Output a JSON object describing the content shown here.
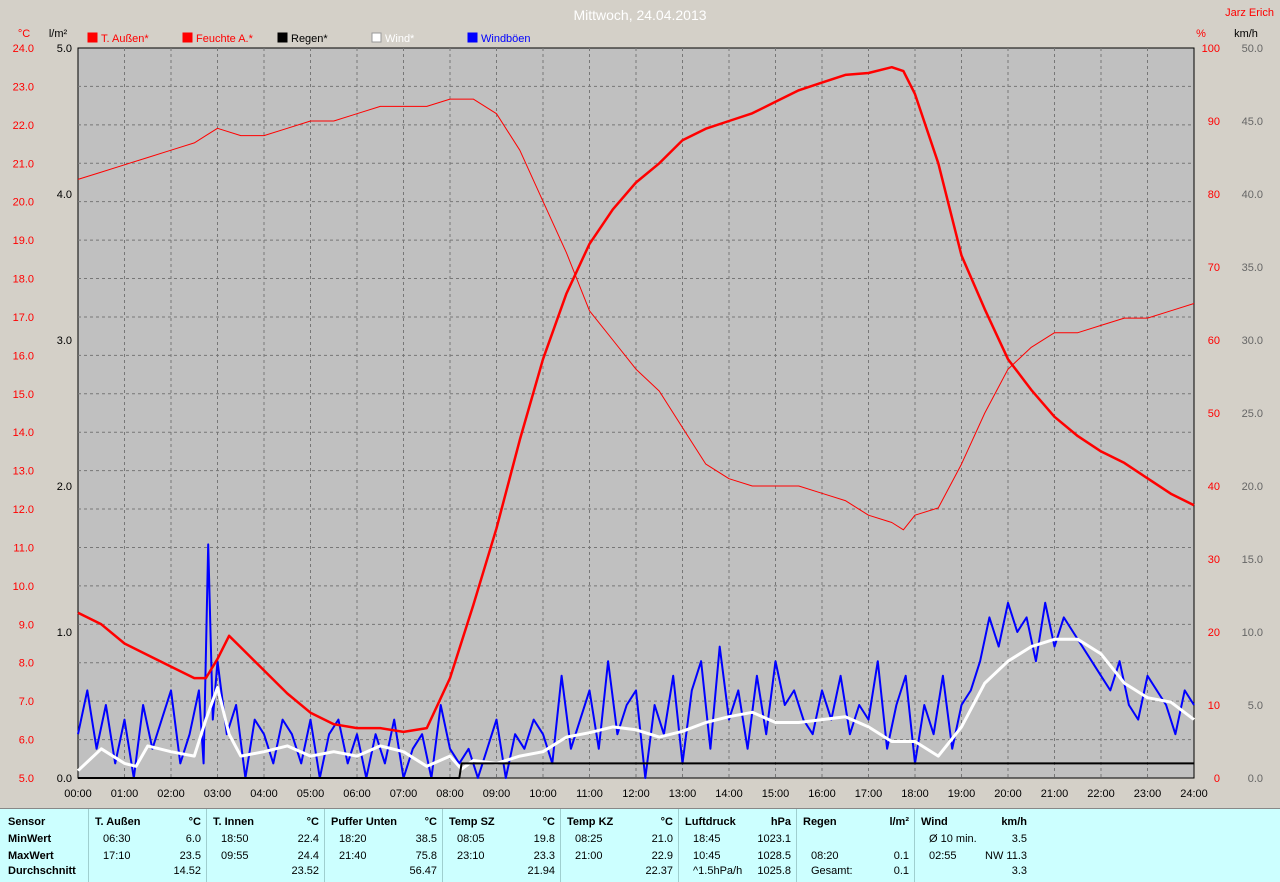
{
  "header": {
    "title": "Mittwoch, 24.04.2013",
    "author": "Jarz Erich",
    "unit_left_temp": "°C",
    "unit_left_rain": "l/m²",
    "unit_right_pct": "%",
    "unit_right_wind": "km/h"
  },
  "colors": {
    "background": "#d4d0c8",
    "plot_bg": "#c0c0c0",
    "red": "#ff0000",
    "blue": "#0000ff",
    "white": "#ffffff",
    "black": "#000000",
    "stats_bg": "#ccffff"
  },
  "chart_data": {
    "type": "line",
    "title": "Mittwoch, 24.04.2013",
    "legend": [
      {
        "name": "T. Außen*",
        "color": "#ff0000"
      },
      {
        "name": "Feuchte A.*",
        "color": "#ff0000"
      },
      {
        "name": "Regen*",
        "color": "#000000"
      },
      {
        "name": "Wind*",
        "color": "#ffffff"
      },
      {
        "name": "Windböen",
        "color": "#0000ff"
      }
    ],
    "x_ticks": [
      "00:00",
      "01:00",
      "02:00",
      "03:00",
      "04:00",
      "05:00",
      "06:00",
      "07:00",
      "08:00",
      "09:00",
      "10:00",
      "11:00",
      "12:00",
      "13:00",
      "14:00",
      "15:00",
      "16:00",
      "17:00",
      "18:00",
      "19:00",
      "20:00",
      "21:00",
      "22:00",
      "23:00",
      "24:00"
    ],
    "axes": {
      "temp": {
        "unit": "°C",
        "min": 5.0,
        "max": 24.0,
        "ticks": [
          "24.0",
          "23.0",
          "22.0",
          "21.0",
          "20.0",
          "19.0",
          "18.0",
          "17.0",
          "16.0",
          "15.0",
          "14.0",
          "13.0",
          "12.0",
          "11.0",
          "10.0",
          "9.0",
          "8.0",
          "7.0",
          "6.0",
          "5.0"
        ]
      },
      "rain": {
        "unit": "l/m²",
        "min": 0.0,
        "max": 5.0,
        "ticks": [
          "5.0",
          "4.0",
          "3.0",
          "2.0",
          "1.0",
          "0.0"
        ]
      },
      "humidity": {
        "unit": "%",
        "min": 0,
        "max": 100,
        "ticks": [
          "100",
          "90",
          "80",
          "70",
          "60",
          "50",
          "40",
          "30",
          "20",
          "10",
          "0"
        ]
      },
      "wind": {
        "unit": "km/h",
        "min": 0.0,
        "max": 50.0,
        "ticks": [
          "50.0",
          "45.0",
          "40.0",
          "35.0",
          "30.0",
          "25.0",
          "20.0",
          "15.0",
          "10.0",
          "5.0",
          "0.0"
        ]
      }
    },
    "series": [
      {
        "name": "T. Außen*",
        "axis": "temp",
        "x": [
          0,
          0.5,
          1,
          1.5,
          2,
          2.5,
          2.75,
          3,
          3.25,
          3.5,
          4,
          4.5,
          5,
          5.5,
          6,
          6.5,
          7,
          7.5,
          8,
          8.5,
          9,
          9.5,
          10,
          10.5,
          11,
          11.5,
          12,
          12.5,
          13,
          13.5,
          14,
          14.5,
          15,
          15.5,
          16,
          16.5,
          17,
          17.5,
          17.75,
          18,
          18.5,
          19,
          19.5,
          20,
          20.5,
          21,
          21.5,
          22,
          22.5,
          23,
          23.5,
          24
        ],
        "y": [
          9.3,
          9.0,
          8.5,
          8.2,
          7.9,
          7.6,
          7.6,
          8.1,
          8.7,
          8.4,
          7.8,
          7.2,
          6.7,
          6.4,
          6.3,
          6.3,
          6.2,
          6.3,
          7.6,
          9.5,
          11.5,
          13.8,
          15.9,
          17.6,
          18.9,
          19.8,
          20.5,
          21.0,
          21.6,
          21.9,
          22.1,
          22.3,
          22.6,
          22.9,
          23.1,
          23.3,
          23.35,
          23.5,
          23.4,
          22.8,
          21.0,
          18.6,
          17.2,
          15.9,
          15.1,
          14.4,
          13.9,
          13.5,
          13.2,
          12.8,
          12.4,
          12.1
        ]
      },
      {
        "name": "Feuchte A.*",
        "axis": "humidity",
        "x": [
          0,
          0.5,
          1,
          1.5,
          2,
          2.5,
          2.75,
          3,
          3.5,
          4,
          4.5,
          5,
          5.5,
          6,
          6.5,
          7,
          7.5,
          8,
          8.25,
          8.5,
          9,
          9.5,
          10,
          10.5,
          11,
          11.5,
          12,
          12.5,
          13,
          13.5,
          14,
          14.5,
          15,
          15.5,
          16,
          16.5,
          17,
          17.5,
          17.75,
          18,
          18.5,
          19,
          19.5,
          20,
          20.5,
          21,
          21.5,
          22,
          22.5,
          23,
          23.5,
          24
        ],
        "y": [
          82,
          83,
          84,
          85,
          86,
          87,
          88,
          89,
          88,
          88,
          89,
          90,
          90,
          91,
          92,
          92,
          92,
          93,
          93,
          93,
          91,
          86,
          79,
          72,
          64,
          60,
          56,
          53,
          48,
          43,
          41,
          40,
          40,
          40,
          39,
          38,
          36,
          35,
          34,
          36,
          37,
          43,
          50,
          56,
          59,
          61,
          61,
          62,
          63,
          63,
          64,
          65
        ]
      },
      {
        "name": "Regen*",
        "axis": "rain",
        "x": [
          0,
          8.2,
          8.25,
          8.5,
          9,
          10,
          24
        ],
        "y": [
          0,
          0,
          0.1,
          0.1,
          0.1,
          0.1,
          0.1
        ]
      },
      {
        "name": "Wind*",
        "axis": "wind",
        "x": [
          0,
          0.5,
          1,
          1.25,
          1.5,
          2,
          2.5,
          2.75,
          3,
          3.25,
          3.5,
          4,
          4.5,
          5,
          5.5,
          6,
          6.5,
          7,
          7.5,
          8,
          8.25,
          8.5,
          9,
          9.5,
          10,
          10.5,
          11,
          11.5,
          12,
          12.5,
          13,
          13.5,
          14,
          14.5,
          15,
          15.5,
          16,
          16.5,
          17,
          17.5,
          18,
          18.5,
          19,
          19.5,
          20,
          20.5,
          21,
          21.5,
          22,
          22.5,
          23,
          23.5,
          24
        ],
        "y": [
          0.5,
          2.0,
          1.0,
          0.8,
          2.2,
          1.8,
          1.5,
          4.0,
          6.2,
          3.0,
          1.5,
          1.8,
          2.2,
          1.5,
          1.8,
          1.5,
          2.2,
          1.8,
          0.8,
          1.5,
          0.6,
          1.2,
          1.0,
          1.5,
          1.8,
          2.8,
          3.1,
          3.5,
          3.3,
          2.8,
          3.2,
          3.8,
          4.2,
          4.5,
          3.8,
          3.8,
          4.0,
          4.2,
          3.5,
          2.5,
          2.5,
          1.5,
          3.5,
          6.5,
          8.0,
          9.0,
          9.5,
          9.5,
          8.5,
          6.5,
          5.5,
          5.2,
          4.0
        ]
      },
      {
        "name": "Windböen",
        "axis": "wind",
        "x": [
          0,
          0.2,
          0.4,
          0.6,
          0.8,
          1,
          1.2,
          1.4,
          1.6,
          1.8,
          2,
          2.2,
          2.4,
          2.6,
          2.7,
          2.8,
          2.9,
          3.0,
          3.2,
          3.4,
          3.6,
          3.8,
          4,
          4.2,
          4.4,
          4.6,
          4.8,
          5,
          5.2,
          5.4,
          5.6,
          5.8,
          6,
          6.2,
          6.4,
          6.6,
          6.8,
          7,
          7.2,
          7.4,
          7.6,
          7.8,
          8,
          8.2,
          8.4,
          8.6,
          8.8,
          9,
          9.2,
          9.4,
          9.6,
          9.8,
          10,
          10.2,
          10.4,
          10.6,
          10.8,
          11,
          11.2,
          11.4,
          11.6,
          11.8,
          12,
          12.2,
          12.4,
          12.6,
          12.8,
          13,
          13.2,
          13.4,
          13.6,
          13.8,
          14,
          14.2,
          14.4,
          14.6,
          14.8,
          15,
          15.2,
          15.4,
          15.6,
          15.8,
          16,
          16.2,
          16.4,
          16.6,
          16.8,
          17,
          17.2,
          17.4,
          17.6,
          17.8,
          18,
          18.2,
          18.4,
          18.6,
          18.8,
          19,
          19.2,
          19.4,
          19.6,
          19.8,
          20,
          20.2,
          20.4,
          20.6,
          20.8,
          21,
          21.2,
          21.4,
          21.6,
          21.8,
          22,
          22.2,
          22.4,
          22.6,
          22.8,
          23,
          23.2,
          23.4,
          23.6,
          23.8,
          24
        ],
        "y": [
          3,
          6,
          2,
          5,
          1,
          4,
          0,
          5,
          2,
          4,
          6,
          1,
          3,
          6,
          1,
          16,
          4,
          8,
          3,
          5,
          0,
          4,
          3,
          1,
          4,
          3,
          1,
          4,
          0,
          3,
          4,
          1,
          3,
          0,
          3,
          1,
          4,
          0,
          2,
          3,
          0,
          5,
          2,
          1,
          2,
          0,
          2,
          4,
          0,
          3,
          2,
          4,
          3,
          1,
          7,
          2,
          4,
          6,
          2,
          8,
          3,
          5,
          6,
          0,
          5,
          3,
          7,
          1,
          6,
          8,
          2,
          9,
          4,
          6,
          2,
          7,
          3,
          8,
          5,
          6,
          4,
          3,
          6,
          4,
          7,
          3,
          5,
          4,
          8,
          2,
          5,
          7,
          1,
          5,
          3,
          7,
          2,
          5,
          6,
          8,
          11,
          9,
          12,
          10,
          11,
          8,
          12,
          9,
          11,
          10,
          9,
          8,
          7,
          6,
          8,
          5,
          4,
          7,
          6,
          5,
          3,
          6,
          5
        ]
      }
    ]
  },
  "stats": {
    "columns": [
      {
        "title": "Sensor",
        "rows": [
          "MinWert",
          "MaxWert",
          "Durchschnitt"
        ]
      },
      {
        "title": "T. Außen",
        "unit": "°C",
        "min_time": "06:30",
        "min_val": "6.0",
        "max_time": "17:10",
        "max_val": "23.5",
        "avg_time": "",
        "avg": "14.52"
      },
      {
        "title": "T. Innen",
        "unit": "°C",
        "min_time": "18:50",
        "min_val": "22.4",
        "max_time": "09:55",
        "max_val": "24.4",
        "avg_time": "",
        "avg": "23.52"
      },
      {
        "title": "Puffer Unten",
        "unit": "°C",
        "min_time": "18:20",
        "min_val": "38.5",
        "max_time": "21:40",
        "max_val": "75.8",
        "avg_time": "",
        "avg": "56.47"
      },
      {
        "title": "Temp SZ",
        "unit": "°C",
        "min_time": "08:05",
        "min_val": "19.8",
        "max_time": "23:10",
        "max_val": "23.3",
        "avg_time": "",
        "avg": "21.94"
      },
      {
        "title": "Temp KZ",
        "unit": "°C",
        "min_time": "08:25",
        "min_val": "21.0",
        "max_time": "21:00",
        "max_val": "22.9",
        "avg_time": "",
        "avg": "22.37"
      },
      {
        "title": "Luftdruck",
        "unit": "hPa",
        "min_time": "18:45",
        "min_val": "1023.1",
        "max_time": "10:45",
        "max_val": "1028.5",
        "avg_time": "^1.5hPa/h",
        "avg": "1025.8"
      },
      {
        "title": "Regen",
        "unit": "l/m²",
        "min_time": "",
        "min_val": "",
        "max_time": "08:20",
        "max_val": "0.1",
        "avg_time": "Gesamt:",
        "avg": "0.1"
      },
      {
        "title": "Wind",
        "unit": "km/h",
        "min_time": "Ø 10 min.",
        "min_val": "3.5",
        "max_time": "02:55",
        "max_val": "NW 11.3",
        "avg_time": "",
        "avg": "3.3"
      }
    ]
  }
}
